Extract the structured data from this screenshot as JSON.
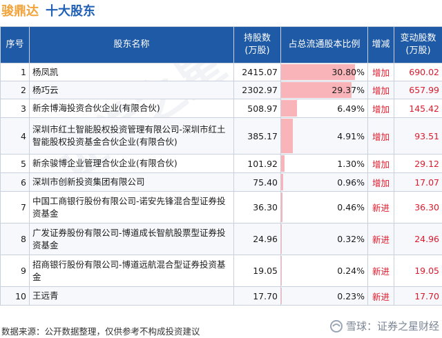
{
  "header": {
    "company": "骏鼎达",
    "title": "十大股东"
  },
  "table": {
    "headers": {
      "index": "序号",
      "name": "股东名称",
      "shares": "持股数\n(万股)",
      "ratio": "占总流通股本比例",
      "change_type": "增减",
      "change_shares": "变动股数\n(万股)"
    },
    "rows": [
      {
        "index": "1",
        "name": "杨凤凯",
        "shares": "2415.07",
        "ratio": "30.80%",
        "ratio_value": 30.8,
        "change_type": "增加",
        "change_shares": "690.02"
      },
      {
        "index": "2",
        "name": "杨巧云",
        "shares": "2302.97",
        "ratio": "29.37%",
        "ratio_value": 29.37,
        "change_type": "增加",
        "change_shares": "657.99"
      },
      {
        "index": "3",
        "name": "新余博海投资合伙企业(有限合伙)",
        "shares": "508.97",
        "ratio": "6.49%",
        "ratio_value": 6.49,
        "change_type": "增加",
        "change_shares": "145.42"
      },
      {
        "index": "4",
        "name": "深圳市红土智能股权投资管理有限公司-深圳市红土智能股权投资基金合伙企业(有限合伙)",
        "shares": "385.17",
        "ratio": "4.91%",
        "ratio_value": 4.91,
        "change_type": "增加",
        "change_shares": "93.51"
      },
      {
        "index": "5",
        "name": "新余骏博企业管理合伙企业(有限合伙)",
        "shares": "101.92",
        "ratio": "1.30%",
        "ratio_value": 1.3,
        "change_type": "增加",
        "change_shares": "29.12"
      },
      {
        "index": "6",
        "name": "深圳市创新投资集团有限公司",
        "shares": "75.40",
        "ratio": "0.96%",
        "ratio_value": 0.96,
        "change_type": "增加",
        "change_shares": "17.07"
      },
      {
        "index": "7",
        "name": "中国工商银行股份有限公司-诺安先锋混合型证券投资基金",
        "shares": "36.30",
        "ratio": "0.46%",
        "ratio_value": 0.46,
        "change_type": "新进",
        "change_shares": "36.30"
      },
      {
        "index": "8",
        "name": "广发证券股份有限公司-博道成长智航股票型证券投资基金",
        "shares": "24.96",
        "ratio": "0.32%",
        "ratio_value": 0.32,
        "change_type": "新进",
        "change_shares": "24.96"
      },
      {
        "index": "9",
        "name": "招商银行股份有限公司-博道远航混合型证券投资基金",
        "shares": "19.05",
        "ratio": "0.24%",
        "ratio_value": 0.24,
        "change_type": "新进",
        "change_shares": "19.05"
      },
      {
        "index": "10",
        "name": "王远青",
        "shares": "17.70",
        "ratio": "0.23%",
        "ratio_value": 0.23,
        "change_type": "新进",
        "change_shares": "17.70"
      }
    ]
  },
  "footer": {
    "source": "数据来源：公开数据整理，仅供参考不构成投资建议",
    "brand": "雪球：证券之星财经"
  },
  "colors": {
    "header_bg": "#1f5aa6",
    "bar": "#f9b4b9",
    "change_text": "#e0192b",
    "company": "#f2a33a",
    "title": "#1f5fb4"
  }
}
